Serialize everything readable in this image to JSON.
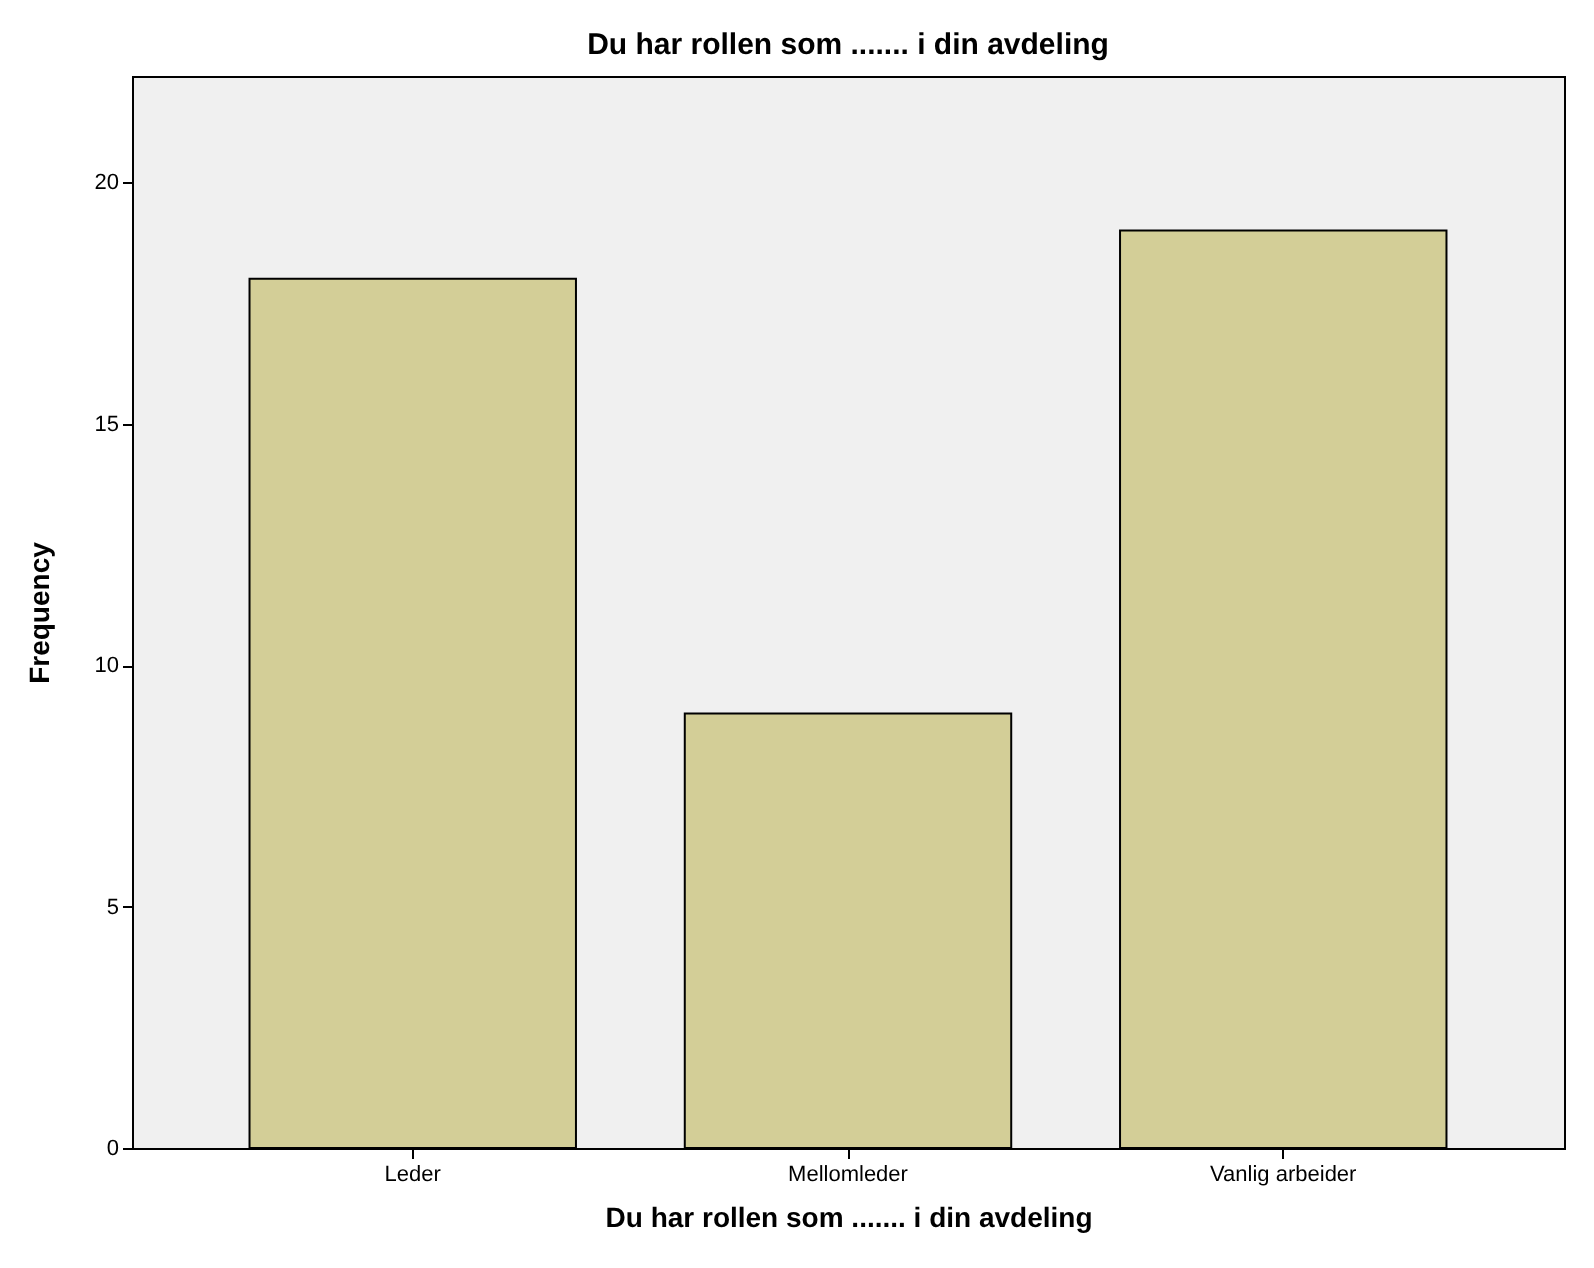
{
  "chart_data": {
    "type": "bar",
    "title": "Du har rollen som ....... i din avdeling",
    "xlabel": "Du har rollen som ....... i din avdeling",
    "ylabel": "Frequency",
    "categories": [
      "Leder",
      "Mellomleder",
      "Vanlig arbeider"
    ],
    "values": [
      18,
      9,
      19
    ],
    "color": "#d3ce97",
    "ylim": [
      0,
      22.2
    ],
    "yticks": [
      0,
      5,
      10,
      15,
      20
    ],
    "grid": false
  }
}
